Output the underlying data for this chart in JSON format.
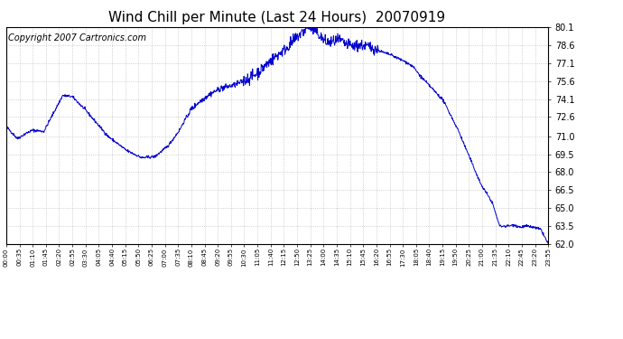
{
  "title": "Wind Chill per Minute (Last 24 Hours)  20070919",
  "copyright_text": "Copyright 2007 Cartronics.com",
  "line_color": "#0000cc",
  "background_color": "#ffffff",
  "grid_color": "#aaaaaa",
  "ylim": [
    62.0,
    80.1
  ],
  "yticks": [
    62.0,
    63.5,
    65.0,
    66.5,
    68.0,
    69.5,
    71.0,
    72.6,
    74.1,
    75.6,
    77.1,
    78.6,
    80.1
  ],
  "xtick_labels": [
    "00:00",
    "00:35",
    "01:10",
    "01:45",
    "02:20",
    "02:55",
    "03:30",
    "04:05",
    "04:40",
    "05:15",
    "05:50",
    "06:25",
    "07:00",
    "07:35",
    "08:10",
    "08:45",
    "09:20",
    "09:55",
    "10:30",
    "11:05",
    "11:40",
    "12:15",
    "12:50",
    "13:25",
    "14:00",
    "14:35",
    "15:10",
    "15:45",
    "16:20",
    "16:55",
    "17:30",
    "18:05",
    "18:40",
    "19:15",
    "19:50",
    "20:25",
    "21:00",
    "21:35",
    "22:10",
    "22:45",
    "23:20",
    "23:55"
  ],
  "title_fontsize": 11,
  "copyright_fontsize": 7,
  "keypoints_x": [
    0,
    30,
    50,
    70,
    100,
    150,
    175,
    185,
    210,
    270,
    320,
    360,
    395,
    430,
    460,
    475,
    490,
    510,
    540,
    570,
    610,
    635,
    660,
    685,
    710,
    730,
    750,
    770,
    800,
    820,
    835,
    850,
    870,
    885,
    900,
    920,
    940,
    960,
    980,
    1000,
    1020,
    1040,
    1060,
    1080,
    1100,
    1130,
    1160,
    1200,
    1260,
    1290,
    1310,
    1330,
    1350,
    1365,
    1380,
    1400,
    1420,
    1439
  ],
  "keypoints_y": [
    71.8,
    70.8,
    71.2,
    71.5,
    71.4,
    74.4,
    74.3,
    74.0,
    73.2,
    71.0,
    69.8,
    69.2,
    69.3,
    70.2,
    71.5,
    72.4,
    73.2,
    73.8,
    74.5,
    75.0,
    75.3,
    75.7,
    76.1,
    76.8,
    77.5,
    78.0,
    78.5,
    79.2,
    80.1,
    79.8,
    79.3,
    78.8,
    78.9,
    79.0,
    78.7,
    78.5,
    78.6,
    78.5,
    78.3,
    78.0,
    77.8,
    77.5,
    77.2,
    76.8,
    76.0,
    75.0,
    74.0,
    71.5,
    67.0,
    65.5,
    63.5,
    63.5,
    63.6,
    63.4,
    63.5,
    63.4,
    63.2,
    62.0
  ]
}
